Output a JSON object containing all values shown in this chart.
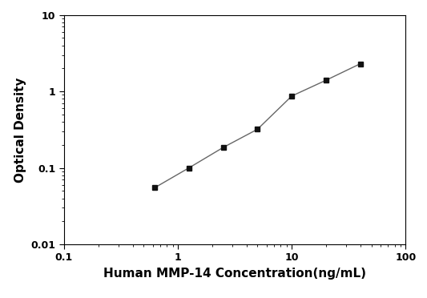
{
  "x": [
    0.625,
    1.25,
    2.5,
    5,
    10,
    20,
    40
  ],
  "y": [
    0.055,
    0.1,
    0.185,
    0.32,
    0.87,
    1.4,
    2.3
  ],
  "xlabel": "Human MMP-14 Concentration(ng/mL)",
  "ylabel": "Optical Density",
  "xlim": [
    0.1,
    100
  ],
  "ylim": [
    0.01,
    10
  ],
  "line_color": "#666666",
  "marker_color": "#111111",
  "marker": "s",
  "marker_size": 5,
  "line_width": 1.0,
  "background_color": "#ffffff",
  "xlabel_fontsize": 11,
  "ylabel_fontsize": 11,
  "tick_fontsize": 9
}
